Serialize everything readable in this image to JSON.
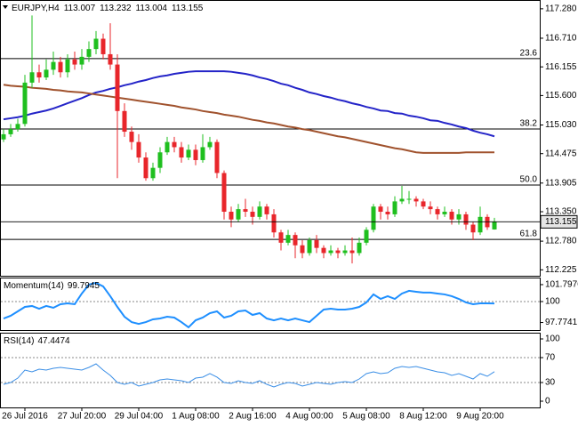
{
  "chart_data": [
    {
      "type": "candlestick",
      "title": "EURJPY,H4",
      "categories": [
        null,
        null,
        null,
        "26 Jul 2016",
        null,
        null,
        null,
        null,
        null,
        null,
        null,
        "27 Jul 20:00",
        null,
        null,
        null,
        null,
        null,
        null,
        null,
        "29 Jul 04:00",
        null,
        null,
        null,
        null,
        null,
        null,
        null,
        "1 Aug 08:00",
        null,
        null,
        null,
        null,
        null,
        null,
        null,
        "2 Aug 16:00",
        null,
        null,
        null,
        null,
        null,
        null,
        null,
        "4 Aug 00:00",
        null,
        null,
        null,
        null,
        null,
        null,
        null,
        "5 Aug 08:00",
        null,
        null,
        null,
        null,
        null,
        null,
        null,
        "8 Aug 12:00",
        null,
        null,
        null,
        null,
        null,
        null,
        null,
        "9 Aug 20:00",
        null,
        null
      ],
      "open": [
        114.75,
        114.85,
        114.95,
        115.05,
        115.85,
        116.05,
        115.95,
        116.1,
        116.25,
        116.05,
        116.3,
        116.2,
        116.35,
        116.5,
        116.7,
        116.4,
        116.2,
        115.3,
        114.9,
        114.7,
        114.4,
        114.0,
        114.2,
        114.5,
        114.7,
        114.6,
        114.4,
        114.55,
        114.35,
        114.6,
        114.7,
        114.1,
        113.35,
        113.2,
        113.4,
        113.35,
        113.25,
        113.45,
        113.3,
        112.95,
        112.75,
        112.9,
        112.7,
        112.55,
        112.8,
        112.65,
        112.55,
        112.6,
        112.55,
        112.6,
        112.55,
        112.75,
        113.0,
        113.45,
        113.35,
        113.3,
        113.55,
        113.6,
        113.6,
        113.55,
        113.45,
        113.4,
        113.3,
        113.35,
        113.2,
        113.3,
        113.1,
        112.95,
        113.25,
        113.007
      ],
      "high": [
        114.95,
        115.05,
        115.15,
        116.0,
        117.15,
        116.2,
        116.3,
        116.45,
        116.35,
        116.4,
        116.45,
        116.5,
        116.65,
        116.85,
        116.8,
        117.0,
        116.4,
        115.45,
        115.0,
        114.85,
        114.5,
        114.3,
        114.6,
        114.8,
        114.8,
        114.7,
        114.65,
        114.65,
        114.85,
        114.8,
        114.75,
        114.15,
        113.45,
        113.5,
        113.6,
        113.45,
        113.55,
        113.5,
        113.4,
        113.0,
        113.0,
        112.95,
        112.8,
        112.85,
        112.9,
        112.7,
        112.7,
        112.65,
        112.7,
        112.85,
        112.85,
        113.05,
        113.5,
        113.5,
        113.45,
        113.65,
        113.85,
        113.75,
        113.65,
        113.6,
        113.55,
        113.45,
        113.45,
        113.4,
        113.4,
        113.35,
        113.15,
        113.45,
        113.3,
        113.232
      ],
      "low": [
        114.7,
        114.8,
        114.9,
        115.0,
        115.75,
        115.85,
        115.9,
        116.0,
        115.95,
        115.95,
        116.1,
        116.1,
        116.25,
        116.4,
        116.3,
        116.1,
        114.0,
        114.8,
        114.55,
        114.3,
        113.95,
        113.95,
        114.1,
        114.45,
        114.5,
        114.3,
        114.35,
        114.25,
        114.3,
        114.55,
        114.0,
        113.2,
        113.05,
        113.15,
        113.25,
        113.1,
        113.2,
        113.2,
        112.85,
        112.6,
        112.7,
        112.45,
        112.45,
        112.5,
        112.55,
        112.45,
        112.5,
        112.45,
        112.5,
        112.35,
        112.5,
        112.7,
        112.95,
        113.2,
        113.2,
        113.25,
        113.5,
        113.5,
        113.45,
        113.4,
        113.3,
        113.2,
        113.25,
        113.1,
        113.1,
        113.0,
        112.8,
        112.9,
        113.0,
        113.004
      ],
      "close": [
        114.85,
        114.95,
        115.05,
        115.85,
        116.05,
        115.95,
        116.1,
        116.25,
        116.05,
        116.3,
        116.2,
        116.35,
        116.5,
        116.7,
        116.4,
        116.2,
        115.3,
        114.9,
        114.7,
        114.4,
        114.0,
        114.2,
        114.5,
        114.7,
        114.6,
        114.4,
        114.55,
        114.35,
        114.6,
        114.7,
        114.1,
        113.35,
        113.2,
        113.4,
        113.35,
        113.25,
        113.45,
        113.3,
        112.95,
        112.75,
        112.9,
        112.7,
        112.55,
        112.8,
        112.65,
        112.55,
        112.6,
        112.55,
        112.6,
        112.55,
        112.75,
        113.0,
        113.45,
        113.35,
        113.3,
        113.55,
        113.6,
        113.6,
        113.55,
        113.45,
        113.4,
        113.3,
        113.35,
        113.2,
        113.3,
        113.1,
        112.95,
        113.25,
        113.05,
        113.155
      ],
      "up_color": "#1fbf1f",
      "down_color": "#e8262b",
      "overlays": [
        {
          "color": "#2424c8",
          "values": [
            115.14,
            115.16,
            115.18,
            115.21,
            115.25,
            115.28,
            115.31,
            115.35,
            115.4,
            115.45,
            115.5,
            115.55,
            115.61,
            115.66,
            115.69,
            115.73,
            115.76,
            115.8,
            115.83,
            115.87,
            115.9,
            115.94,
            115.97,
            115.99,
            116.02,
            116.04,
            116.06,
            116.07,
            116.07,
            116.07,
            116.07,
            116.07,
            116.06,
            116.04,
            116.02,
            115.99,
            115.95,
            115.92,
            115.88,
            115.83,
            115.8,
            115.75,
            115.71,
            115.66,
            115.63,
            115.59,
            115.56,
            115.52,
            115.49,
            115.45,
            115.42,
            115.38,
            115.35,
            115.31,
            115.3,
            115.26,
            115.25,
            115.21,
            115.19,
            115.16,
            115.12,
            115.11,
            115.07,
            115.04,
            115.0,
            114.97,
            114.92,
            114.88,
            114.85,
            114.81
          ]
        },
        {
          "color": "#a0522d",
          "values": [
            115.81,
            115.79,
            115.78,
            115.77,
            115.75,
            115.74,
            115.73,
            115.71,
            115.7,
            115.68,
            115.67,
            115.66,
            115.64,
            115.62,
            115.6,
            115.58,
            115.56,
            115.54,
            115.52,
            115.5,
            115.48,
            115.46,
            115.44,
            115.42,
            115.4,
            115.37,
            115.35,
            115.33,
            115.3,
            115.28,
            115.26,
            115.23,
            115.21,
            115.19,
            115.16,
            115.13,
            115.11,
            115.08,
            115.06,
            115.03,
            115.0,
            114.98,
            114.95,
            114.93,
            114.9,
            114.87,
            114.84,
            114.81,
            114.79,
            114.76,
            114.73,
            114.7,
            114.67,
            114.64,
            114.61,
            114.58,
            114.56,
            114.53,
            114.5,
            114.49,
            114.49,
            114.49,
            114.49,
            114.49,
            114.49,
            114.5,
            114.5,
            114.5,
            114.5,
            114.5
          ]
        }
      ],
      "fib_levels": [
        {
          "label": "23.6",
          "price": 116.315
        },
        {
          "label": "38.2",
          "price": 114.953
        },
        {
          "label": "50.0",
          "price": 113.866
        },
        {
          "label": "61.8",
          "price": 112.815
        }
      ],
      "ylim": [
        112.11,
        117.45
      ],
      "yticks": [
        {
          "value": 117.28,
          "label": "117.280"
        },
        {
          "value": 116.71,
          "label": "116.710"
        },
        116.155,
        {
          "value": 115.6,
          "label": "115.600"
        },
        {
          "value": 115.03,
          "label": "115.030"
        },
        114.475,
        113.905,
        {
          "value": 113.35,
          "label": "113.350"
        },
        {
          "value": 112.78,
          "label": "112.780"
        },
        112.225
      ]
    },
    {
      "type": "line",
      "title": "Momentum(14)",
      "color": "#1e8fff",
      "values": [
        98.2,
        98.49,
        98.96,
        99.43,
        99.53,
        99.24,
        99.53,
        99.34,
        99.72,
        99.81,
        99.72,
        100.85,
        101.8,
        101.99,
        101.61,
        100.57,
        99.43,
        98.39,
        97.82,
        97.63,
        97.82,
        98.11,
        98.2,
        98.39,
        98.3,
        97.82,
        97.26,
        98.01,
        98.3,
        98.77,
        98.96,
        98.3,
        98.49,
        98.96,
        99.05,
        98.58,
        98.77,
        98.2,
        98.01,
        98.2,
        98.01,
        98.2,
        98.01,
        97.82,
        98.49,
        99.15,
        99.24,
        99.15,
        99.15,
        99.24,
        99.43,
        99.91,
        100.76,
        100.28,
        100.57,
        100.28,
        100.85,
        101.14,
        101.04,
        100.95,
        100.95,
        100.85,
        100.76,
        100.57,
        100.28,
        99.91,
        99.72,
        99.81,
        99.81,
        99.7945
      ],
      "levels": [
        100
      ],
      "ylim": [
        96.88,
        102.55
      ],
      "yticks": [
        101.7976,
        100,
        97.7741
      ]
    },
    {
      "type": "line",
      "title": "RSI(14)",
      "color": "#3a8ee6",
      "values": [
        27.1,
        30.0,
        37.1,
        50.0,
        47.1,
        51.4,
        50.0,
        52.9,
        54.3,
        52.9,
        51.4,
        50.0,
        54.3,
        60.0,
        50.0,
        41.4,
        30.0,
        27.1,
        30.0,
        24.3,
        27.1,
        30.0,
        34.3,
        35.7,
        34.3,
        32.9,
        30.0,
        37.1,
        38.6,
        44.3,
        38.6,
        30.0,
        28.6,
        32.9,
        30.0,
        28.6,
        32.9,
        27.1,
        22.9,
        27.1,
        30.0,
        28.6,
        24.3,
        27.1,
        30.0,
        28.6,
        27.1,
        30.0,
        31.4,
        30.0,
        35.7,
        44.3,
        47.1,
        44.3,
        45.7,
        52.9,
        55.7,
        54.3,
        55.7,
        52.9,
        50.0,
        47.1,
        45.7,
        41.4,
        44.3,
        40.0,
        35.7,
        44.3,
        40.0,
        47.4474
      ],
      "levels": [
        70,
        30
      ],
      "ylim": [
        -10,
        110
      ],
      "yticks": [
        100,
        70,
        30,
        0
      ]
    }
  ]
}
